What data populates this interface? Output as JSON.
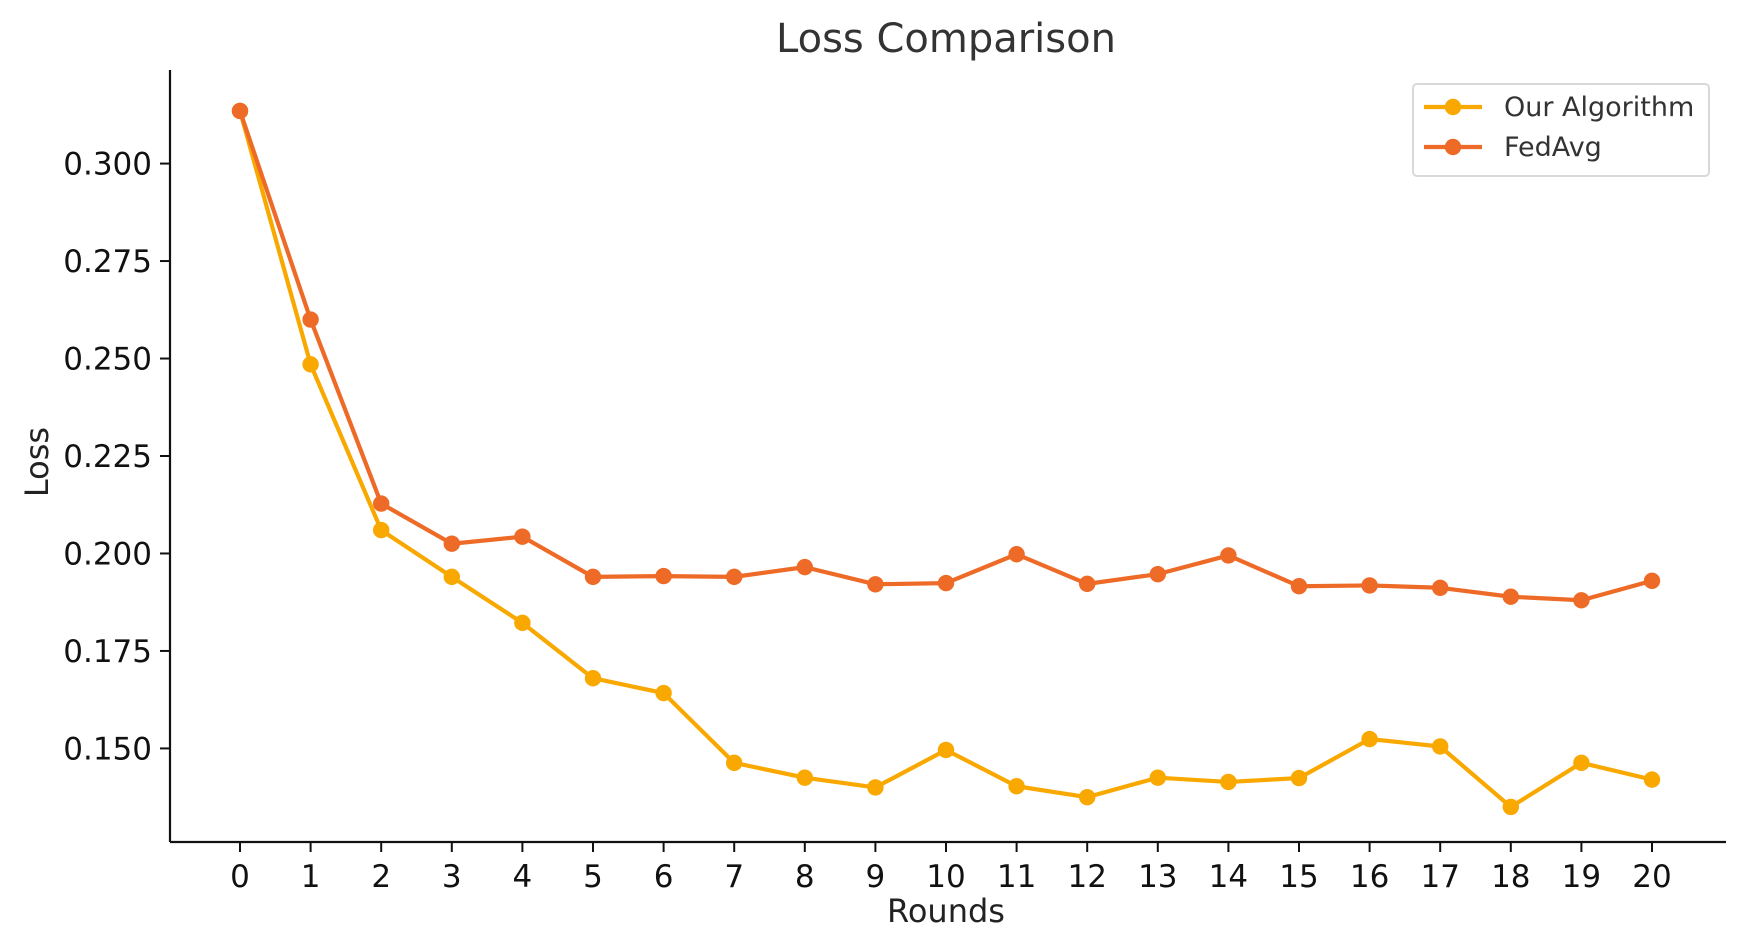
{
  "chart_data": {
    "type": "line",
    "title": "Loss Comparison",
    "xlabel": "Rounds",
    "ylabel": "Loss",
    "x": [
      0,
      1,
      2,
      3,
      4,
      5,
      6,
      7,
      8,
      9,
      10,
      11,
      12,
      13,
      14,
      15,
      16,
      17,
      18,
      19,
      20
    ],
    "xticks": [
      "0",
      "1",
      "2",
      "3",
      "4",
      "5",
      "6",
      "7",
      "8",
      "9",
      "10",
      "11",
      "12",
      "13",
      "14",
      "15",
      "16",
      "17",
      "18",
      "19",
      "20"
    ],
    "ylim": [
      0.126,
      0.324
    ],
    "yticks": [
      0.15,
      0.175,
      0.2,
      0.225,
      0.25,
      0.275,
      0.3
    ],
    "ytick_labels": [
      "0.150",
      "0.175",
      "0.200",
      "0.225",
      "0.250",
      "0.275",
      "0.300"
    ],
    "grid": false,
    "legend_position": "top-right",
    "series": [
      {
        "name": "Our Algorithm",
        "color": "#F9A800",
        "marker": "circle",
        "values": [
          0.3135,
          0.2485,
          0.206,
          0.194,
          0.1822,
          0.168,
          0.1642,
          0.1463,
          0.1425,
          0.14,
          0.1496,
          0.1403,
          0.1375,
          0.1425,
          0.1414,
          0.1424,
          0.1524,
          0.1505,
          0.135,
          0.1463,
          0.142
        ]
      },
      {
        "name": "FedAvg",
        "color": "#EE6A27",
        "marker": "circle",
        "values": [
          0.3135,
          0.26,
          0.2128,
          0.2025,
          0.2043,
          0.194,
          0.1942,
          0.194,
          0.1965,
          0.1921,
          0.1924,
          0.1998,
          0.1922,
          0.1947,
          0.1995,
          0.1916,
          0.1918,
          0.1912,
          0.1889,
          0.188,
          0.193
        ]
      }
    ]
  }
}
